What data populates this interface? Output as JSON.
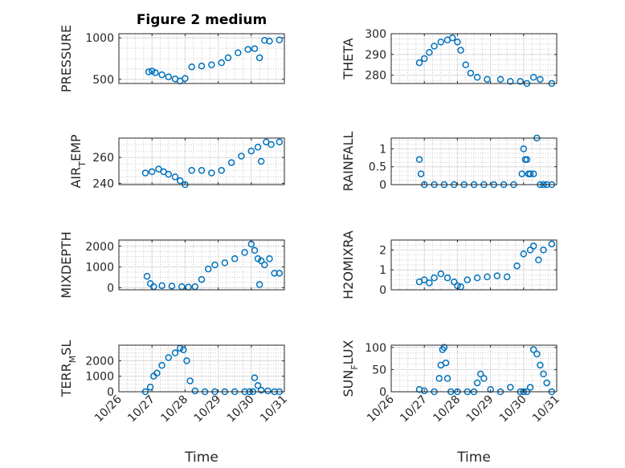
{
  "figure": {
    "title": "Figure 2 medium",
    "xlabel": "Time"
  },
  "style": {
    "marker_color": "#0072BD",
    "axis_color": "#262626",
    "grid_color": "#bdbdbd"
  },
  "chart_data": [
    {
      "type": "scatter",
      "title": "Figure 2 medium",
      "ylabel": "PRESSURE",
      "xlabel": "",
      "xlim": [
        "10/26",
        "10/31"
      ],
      "ylim": [
        450,
        1050
      ],
      "yticks": [
        500,
        1000
      ],
      "yticklabels": [
        "500",
        "1000"
      ],
      "xticks": [
        "10/26",
        "10/27",
        "10/28",
        "10/29",
        "10/30",
        "10/31"
      ],
      "show_xticklabels": false,
      "grid": true,
      "series": [
        {
          "x": [
            26.9,
            27.0,
            27.1,
            27.3,
            27.5,
            27.7,
            27.85,
            28.0,
            28.2,
            28.5,
            28.8,
            29.1,
            29.3,
            29.6,
            29.9,
            30.1,
            30.25,
            30.4,
            30.55,
            30.85
          ],
          "y": [
            590,
            600,
            580,
            555,
            530,
            505,
            480,
            510,
            650,
            660,
            675,
            700,
            760,
            820,
            860,
            870,
            760,
            970,
            960,
            975
          ]
        }
      ]
    },
    {
      "type": "scatter",
      "ylabel": "THETA",
      "xlabel": "",
      "xlim": [
        "10/26",
        "10/31"
      ],
      "ylim": [
        276,
        300
      ],
      "yticks": [
        280,
        290,
        300
      ],
      "yticklabels": [
        "280",
        "290",
        "300"
      ],
      "xticks": [
        "10/26",
        "10/27",
        "10/28",
        "10/29",
        "10/30",
        "10/31"
      ],
      "show_xticklabels": false,
      "grid": true,
      "series": [
        {
          "x": [
            26.85,
            27.0,
            27.15,
            27.3,
            27.5,
            27.7,
            27.85,
            28.0,
            28.1,
            28.25,
            28.4,
            28.6,
            28.9,
            29.3,
            29.6,
            29.9,
            30.1,
            30.3,
            30.5,
            30.85
          ],
          "y": [
            286,
            288,
            291,
            294,
            296,
            297,
            298,
            296,
            292,
            285,
            281,
            279,
            278,
            278,
            277,
            277,
            276,
            279,
            278,
            276
          ]
        }
      ]
    },
    {
      "type": "scatter",
      "ylabel": "AIR_TEMP",
      "ylabel_parts": [
        "AIR",
        "T",
        "EMP"
      ],
      "xlabel": "",
      "xlim": [
        "10/26",
        "10/31"
      ],
      "ylim": [
        239,
        275
      ],
      "yticks": [
        240,
        260
      ],
      "yticklabels": [
        "240",
        "260"
      ],
      "xticks": [
        "10/26",
        "10/27",
        "10/28",
        "10/29",
        "10/30",
        "10/31"
      ],
      "show_xticklabels": false,
      "grid": true,
      "series": [
        {
          "x": [
            26.8,
            27.0,
            27.2,
            27.35,
            27.5,
            27.7,
            27.85,
            28.0,
            28.2,
            28.5,
            28.8,
            29.1,
            29.4,
            29.7,
            30.0,
            30.2,
            30.3,
            30.45,
            30.6,
            30.85
          ],
          "y": [
            248,
            249,
            251,
            249,
            247,
            245,
            242,
            239,
            250,
            250,
            248,
            250,
            256,
            261,
            265,
            268,
            257,
            272,
            270,
            272
          ]
        }
      ]
    },
    {
      "type": "scatter",
      "ylabel": "RAINFALL",
      "xlabel": "",
      "xlim": [
        "10/26",
        "10/31"
      ],
      "ylim": [
        0,
        1.3
      ],
      "yticks": [
        0,
        0.5,
        1
      ],
      "yticklabels": [
        "0",
        "0.5",
        "1"
      ],
      "xticks": [
        "10/26",
        "10/27",
        "10/28",
        "10/29",
        "10/30",
        "10/31"
      ],
      "show_xticklabels": false,
      "grid": true,
      "series": [
        {
          "x": [
            26.85,
            26.9,
            27.0,
            27.3,
            27.6,
            27.9,
            28.2,
            28.5,
            28.8,
            29.1,
            29.4,
            29.7,
            29.95,
            30.0,
            30.05,
            30.1,
            30.15,
            30.2,
            30.3,
            30.4,
            30.5,
            30.6,
            30.7,
            30.85
          ],
          "y": [
            0.7,
            0.3,
            0,
            0,
            0,
            0,
            0,
            0,
            0,
            0,
            0,
            0,
            0.3,
            1.0,
            0.7,
            0.7,
            0.3,
            0.3,
            0.3,
            1.3,
            0,
            0,
            0,
            0
          ]
        }
      ]
    },
    {
      "type": "scatter",
      "ylabel": "MIXDEPTH",
      "xlabel": "",
      "xlim": [
        "10/26",
        "10/31"
      ],
      "ylim": [
        -100,
        2300
      ],
      "yticks": [
        0,
        1000,
        2000
      ],
      "yticklabels": [
        "0",
        "1000",
        "2000"
      ],
      "xticks": [
        "10/26",
        "10/27",
        "10/28",
        "10/29",
        "10/30",
        "10/31"
      ],
      "show_xticklabels": false,
      "grid": true,
      "series": [
        {
          "x": [
            26.85,
            26.95,
            27.05,
            27.3,
            27.6,
            27.9,
            28.1,
            28.3,
            28.5,
            28.7,
            28.9,
            29.2,
            29.5,
            29.8,
            30.0,
            30.1,
            30.2,
            30.25,
            30.3,
            30.4,
            30.55,
            30.7,
            30.85
          ],
          "y": [
            550,
            200,
            50,
            100,
            80,
            50,
            30,
            50,
            400,
            900,
            1100,
            1200,
            1400,
            1700,
            2100,
            1800,
            1400,
            150,
            1300,
            1100,
            1400,
            700,
            700
          ]
        }
      ]
    },
    {
      "type": "scatter",
      "ylabel": "H2OMIXRA",
      "xlabel": "",
      "xlim": [
        "10/26",
        "10/31"
      ],
      "ylim": [
        0,
        2.5
      ],
      "yticks": [
        0,
        1,
        2
      ],
      "yticklabels": [
        "0",
        "1",
        "2"
      ],
      "xticks": [
        "10/26",
        "10/27",
        "10/28",
        "10/29",
        "10/30",
        "10/31"
      ],
      "show_xticklabels": false,
      "grid": true,
      "series": [
        {
          "x": [
            26.85,
            27.0,
            27.15,
            27.3,
            27.5,
            27.7,
            27.9,
            28.0,
            28.1,
            28.3,
            28.6,
            28.9,
            29.2,
            29.5,
            29.8,
            30.0,
            30.2,
            30.3,
            30.45,
            30.6,
            30.85
          ],
          "y": [
            0.4,
            0.5,
            0.35,
            0.6,
            0.8,
            0.6,
            0.4,
            0.2,
            0.15,
            0.5,
            0.6,
            0.65,
            0.7,
            0.65,
            1.2,
            1.8,
            2.0,
            2.2,
            1.5,
            2.0,
            2.3
          ]
        }
      ]
    },
    {
      "type": "scatter",
      "ylabel": "TERR_MSL",
      "ylabel_parts": [
        "TERR",
        "M",
        "SL"
      ],
      "xlabel": "Time",
      "xlim": [
        "10/26",
        "10/31"
      ],
      "ylim": [
        0,
        3000
      ],
      "yticks": [
        0,
        1000,
        2000
      ],
      "yticklabels": [
        "0",
        "1000",
        "2000"
      ],
      "xticks": [
        "10/26",
        "10/27",
        "10/28",
        "10/29",
        "10/30",
        "10/31"
      ],
      "xticklabels": [
        "10/26",
        "10/27",
        "10/28",
        "10/29",
        "10/30",
        "10/31"
      ],
      "show_xticklabels": true,
      "grid": true,
      "series": [
        {
          "x": [
            26.8,
            26.95,
            27.05,
            27.15,
            27.3,
            27.5,
            27.7,
            27.85,
            27.95,
            28.05,
            28.15,
            28.3,
            28.6,
            28.9,
            29.2,
            29.5,
            29.8,
            29.95,
            30.05,
            30.1,
            30.2,
            30.3,
            30.5,
            30.7,
            30.85
          ],
          "y": [
            0,
            300,
            1000,
            1200,
            1700,
            2200,
            2500,
            2800,
            2700,
            2000,
            700,
            50,
            0,
            0,
            0,
            0,
            0,
            0,
            0,
            900,
            400,
            100,
            50,
            0,
            0
          ]
        }
      ]
    },
    {
      "type": "scatter",
      "ylabel": "SUN_FLUX",
      "ylabel_parts": [
        "SUN",
        "F",
        "LUX"
      ],
      "xlabel": "Time",
      "xlim": [
        "10/26",
        "10/31"
      ],
      "ylim": [
        0,
        105
      ],
      "yticks": [
        0,
        50,
        100
      ],
      "yticklabels": [
        "0",
        "50",
        "100"
      ],
      "xticks": [
        "10/26",
        "10/27",
        "10/28",
        "10/29",
        "10/30",
        "10/31"
      ],
      "xticklabels": [
        "10/26",
        "10/27",
        "10/28",
        "10/29",
        "10/30",
        "10/31"
      ],
      "show_xticklabels": true,
      "grid": true,
      "series": [
        {
          "x": [
            26.85,
            27.0,
            27.3,
            27.45,
            27.5,
            27.55,
            27.6,
            27.65,
            27.7,
            27.8,
            28.0,
            28.3,
            28.5,
            28.6,
            28.7,
            28.8,
            29.0,
            29.3,
            29.6,
            29.9,
            30.0,
            30.1,
            30.2,
            30.3,
            30.4,
            30.5,
            30.6,
            30.7,
            30.85
          ],
          "y": [
            5,
            2,
            0,
            30,
            60,
            95,
            100,
            65,
            30,
            0,
            0,
            0,
            0,
            20,
            40,
            30,
            5,
            0,
            10,
            0,
            0,
            0,
            10,
            95,
            85,
            60,
            40,
            20,
            0
          ]
        }
      ]
    }
  ]
}
